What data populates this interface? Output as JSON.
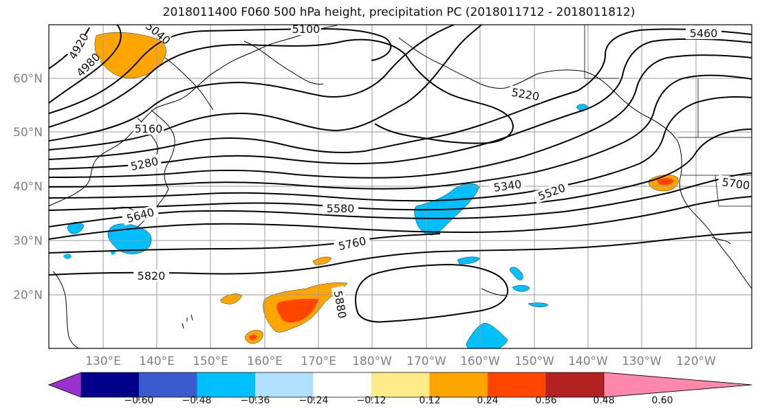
{
  "title": "2018011400 F060 500 hPa height, precipitation PC (2018011712 - 2018011812)",
  "lat_labels": [
    "60°N",
    "50°N",
    "40°N",
    "30°N",
    "20°N"
  ],
  "lon_labels": [
    "130°E",
    "140°E",
    "150°E",
    "160°E",
    "170°E",
    "180°W",
    "170°W",
    "160°W",
    "150°W",
    "140°W",
    "130°W",
    "120°W"
  ],
  "contour_labels": {
    "c4920": "4920",
    "c4980": "4980",
    "c5040": "5040",
    "c5100": "5100",
    "c5160": "5160",
    "c5280": "5280",
    "c5220": "5220",
    "c5340": "5340",
    "c5460": "5460",
    "c5520": "5520",
    "c5580": "5580",
    "c5640": "5640",
    "c5700": "5700",
    "c5760": "5760",
    "c5820": "5820",
    "c5880": "5880"
  },
  "colorbar": {
    "colors": [
      "#9932cc",
      "#00008b",
      "#3a5bcd",
      "#00bfff",
      "#b0e0ff",
      "#ffffff",
      "#ffeb8a",
      "#ffa500",
      "#ff4500",
      "#b22222",
      "#ff88aa"
    ],
    "tick_labels": [
      "−0.60",
      "−0.48",
      "−0.36",
      "−0.24",
      "−0.12",
      "0.12",
      "0.24",
      "0.36",
      "0.48",
      "0.60"
    ]
  },
  "colors": {
    "frame": "#000000",
    "grid": "#9a9a9a",
    "axis_label": "#808080"
  }
}
